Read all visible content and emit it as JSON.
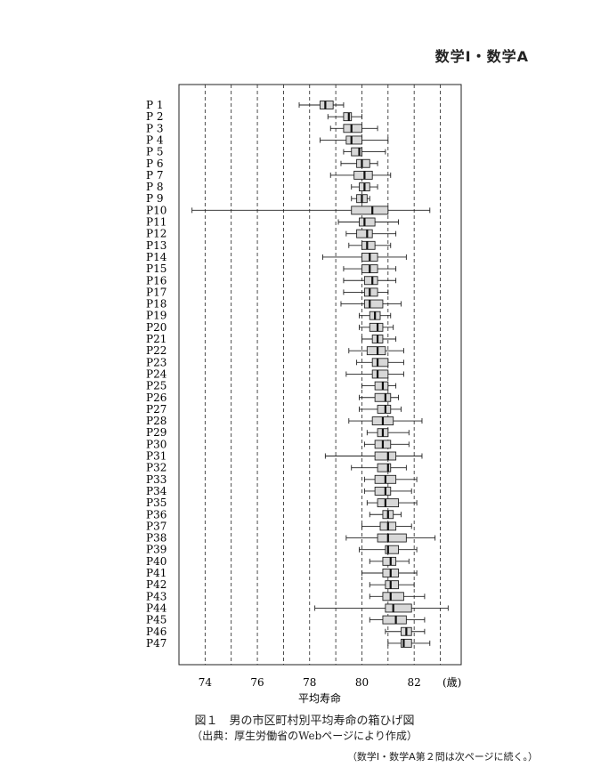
{
  "page_header": "数学Ⅰ・数学A",
  "chart_data": {
    "type": "boxplot",
    "orientation": "horizontal",
    "xlabel": "平均寿命",
    "x_unit": "(歳)",
    "xlim": [
      73,
      83.8
    ],
    "x_ticks": [
      74,
      76,
      78,
      80,
      82
    ],
    "gridlines_dashed": [
      74,
      75,
      76,
      77,
      78,
      79,
      80,
      81,
      82,
      83
    ],
    "series": [
      {
        "name": "P 1",
        "min": 77.6,
        "q1": 78.4,
        "median": 78.6,
        "q3": 78.9,
        "max": 79.3
      },
      {
        "name": "P 2",
        "min": 78.7,
        "q1": 79.3,
        "median": 79.5,
        "q3": 79.6,
        "max": 80.0
      },
      {
        "name": "P 3",
        "min": 78.8,
        "q1": 79.3,
        "median": 79.6,
        "q3": 80.0,
        "max": 80.6
      },
      {
        "name": "P 4",
        "min": 78.4,
        "q1": 79.4,
        "median": 79.6,
        "q3": 80.0,
        "max": 81.0
      },
      {
        "name": "P 5",
        "min": 79.3,
        "q1": 79.6,
        "median": 79.9,
        "q3": 80.0,
        "max": 80.9
      },
      {
        "name": "P 6",
        "min": 79.2,
        "q1": 79.8,
        "median": 80.0,
        "q3": 80.3,
        "max": 80.6
      },
      {
        "name": "P 7",
        "min": 78.8,
        "q1": 79.7,
        "median": 80.1,
        "q3": 80.4,
        "max": 81.1
      },
      {
        "name": "P 8",
        "min": 79.6,
        "q1": 79.9,
        "median": 80.1,
        "q3": 80.3,
        "max": 80.6
      },
      {
        "name": "P 9",
        "min": 79.6,
        "q1": 79.8,
        "median": 80.0,
        "q3": 80.2,
        "max": 80.3
      },
      {
        "name": "P10",
        "min": 73.5,
        "q1": 79.6,
        "median": 80.4,
        "q3": 81.0,
        "max": 82.6
      },
      {
        "name": "P11",
        "min": 79.1,
        "q1": 79.9,
        "median": 80.1,
        "q3": 80.5,
        "max": 81.4
      },
      {
        "name": "P12",
        "min": 79.4,
        "q1": 79.8,
        "median": 80.2,
        "q3": 80.4,
        "max": 81.3
      },
      {
        "name": "P13",
        "min": 79.5,
        "q1": 80.0,
        "median": 80.2,
        "q3": 80.5,
        "max": 81.1
      },
      {
        "name": "P14",
        "min": 78.5,
        "q1": 80.0,
        "median": 80.3,
        "q3": 80.6,
        "max": 81.7
      },
      {
        "name": "P15",
        "min": 79.3,
        "q1": 80.0,
        "median": 80.3,
        "q3": 80.6,
        "max": 81.3
      },
      {
        "name": "P16",
        "min": 79.3,
        "q1": 80.1,
        "median": 80.4,
        "q3": 80.6,
        "max": 81.3
      },
      {
        "name": "P17",
        "min": 79.3,
        "q1": 80.1,
        "median": 80.3,
        "q3": 80.6,
        "max": 81.0
      },
      {
        "name": "P18",
        "min": 79.2,
        "q1": 80.1,
        "median": 80.3,
        "q3": 80.8,
        "max": 81.5
      },
      {
        "name": "P19",
        "min": 79.9,
        "q1": 80.3,
        "median": 80.5,
        "q3": 80.7,
        "max": 81.1
      },
      {
        "name": "P20",
        "min": 79.9,
        "q1": 80.3,
        "median": 80.6,
        "q3": 80.8,
        "max": 81.2
      },
      {
        "name": "P21",
        "min": 80.0,
        "q1": 80.4,
        "median": 80.6,
        "q3": 80.8,
        "max": 81.3
      },
      {
        "name": "P22",
        "min": 79.5,
        "q1": 80.2,
        "median": 80.6,
        "q3": 80.9,
        "max": 81.6
      },
      {
        "name": "P23",
        "min": 79.8,
        "q1": 80.4,
        "median": 80.6,
        "q3": 81.0,
        "max": 81.6
      },
      {
        "name": "P24",
        "min": 79.4,
        "q1": 80.4,
        "median": 80.6,
        "q3": 81.0,
        "max": 81.6
      },
      {
        "name": "P25",
        "min": 80.0,
        "q1": 80.5,
        "median": 80.8,
        "q3": 81.0,
        "max": 81.3
      },
      {
        "name": "P26",
        "min": 79.9,
        "q1": 80.5,
        "median": 80.9,
        "q3": 81.1,
        "max": 81.4
      },
      {
        "name": "P27",
        "min": 79.9,
        "q1": 80.6,
        "median": 80.9,
        "q3": 81.1,
        "max": 81.5
      },
      {
        "name": "P28",
        "min": 79.5,
        "q1": 80.4,
        "median": 80.8,
        "q3": 81.2,
        "max": 82.3
      },
      {
        "name": "P29",
        "min": 80.2,
        "q1": 80.6,
        "median": 80.8,
        "q3": 81.0,
        "max": 81.8
      },
      {
        "name": "P30",
        "min": 80.1,
        "q1": 80.5,
        "median": 80.8,
        "q3": 81.1,
        "max": 81.8
      },
      {
        "name": "P31",
        "min": 78.6,
        "q1": 80.5,
        "median": 81.0,
        "q3": 81.3,
        "max": 82.3
      },
      {
        "name": "P32",
        "min": 79.6,
        "q1": 80.6,
        "median": 81.0,
        "q3": 81.1,
        "max": 81.7
      },
      {
        "name": "P33",
        "min": 80.1,
        "q1": 80.5,
        "median": 80.9,
        "q3": 81.3,
        "max": 82.1
      },
      {
        "name": "P34",
        "min": 80.1,
        "q1": 80.5,
        "median": 80.9,
        "q3": 81.1,
        "max": 81.9
      },
      {
        "name": "P35",
        "min": 80.2,
        "q1": 80.6,
        "median": 80.9,
        "q3": 81.4,
        "max": 82.1
      },
      {
        "name": "P36",
        "min": 80.3,
        "q1": 80.8,
        "median": 81.0,
        "q3": 81.2,
        "max": 81.5
      },
      {
        "name": "P37",
        "min": 80.0,
        "q1": 80.7,
        "median": 81.0,
        "q3": 81.3,
        "max": 81.9
      },
      {
        "name": "P38",
        "min": 79.4,
        "q1": 80.6,
        "median": 81.0,
        "q3": 81.7,
        "max": 82.8
      },
      {
        "name": "P39",
        "min": 79.9,
        "q1": 80.9,
        "median": 81.0,
        "q3": 81.4,
        "max": 82.1
      },
      {
        "name": "P40",
        "min": 80.3,
        "q1": 80.8,
        "median": 81.1,
        "q3": 81.3,
        "max": 81.8
      },
      {
        "name": "P41",
        "min": 80.0,
        "q1": 80.8,
        "median": 81.1,
        "q3": 81.4,
        "max": 82.1
      },
      {
        "name": "P42",
        "min": 80.3,
        "q1": 80.9,
        "median": 81.1,
        "q3": 81.4,
        "max": 82.0
      },
      {
        "name": "P43",
        "min": 80.3,
        "q1": 80.8,
        "median": 81.1,
        "q3": 81.6,
        "max": 82.4
      },
      {
        "name": "P44",
        "min": 78.2,
        "q1": 80.9,
        "median": 81.2,
        "q3": 81.9,
        "max": 83.3
      },
      {
        "name": "P45",
        "min": 80.3,
        "q1": 80.8,
        "median": 81.3,
        "q3": 81.7,
        "max": 82.4
      },
      {
        "name": "P46",
        "min": 80.9,
        "q1": 81.5,
        "median": 81.7,
        "q3": 81.9,
        "max": 82.4
      },
      {
        "name": "P47",
        "min": 81.0,
        "q1": 81.5,
        "median": 81.6,
        "q3": 81.9,
        "max": 82.6
      }
    ]
  },
  "caption": {
    "title": "図１　男の市区町村別平均寿命の箱ひげ図",
    "source": "（出典：厚生労働省のWebページにより作成）"
  },
  "footnote": "（数学Ⅰ・数学A第２問は次ページに続く。）"
}
